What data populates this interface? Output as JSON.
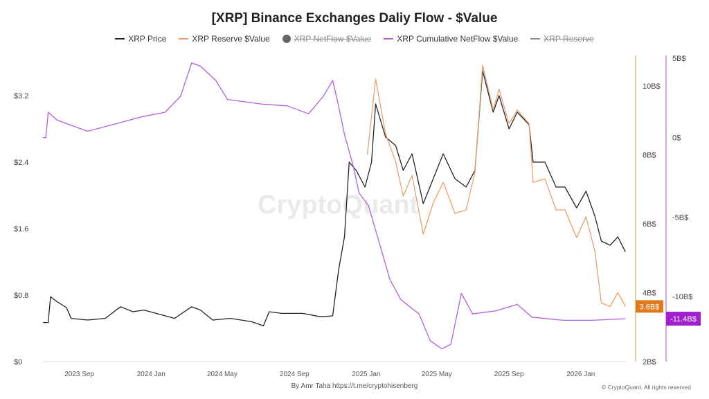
{
  "chart_data": {
    "type": "line",
    "title": "[XRP] Binance Exchanges Daliy Flow - $Value",
    "legend": [
      {
        "name": "XRP Price",
        "color": "#222222",
        "visible": true
      },
      {
        "name": "XRP Reserve $Value",
        "color": "#e8a06a",
        "visible": true
      },
      {
        "name": "XRP NetFlow $Value",
        "color": "#666666",
        "visible": false
      },
      {
        "name": "XRP Cumulative NetFlow $Value",
        "color": "#b25fe0",
        "visible": true
      },
      {
        "name": "XRP Reserve",
        "color": "#888888",
        "visible": false
      }
    ],
    "legend_position": "top",
    "x_ticks": [
      "2023 Sep",
      "2024 Jan",
      "2024 May",
      "2024 Sep",
      "2025 Jan",
      "2025 May",
      "2025 Sep",
      "2026 Jan"
    ],
    "x_tick_dates": [
      "2023-09-01",
      "2024-01-01",
      "2024-05-01",
      "2024-09-01",
      "2025-01-01",
      "2025-05-01",
      "2025-09-01",
      "2026-01-01"
    ],
    "xlim": [
      "2023-07-01",
      "2026-03-20"
    ],
    "y_left": {
      "ticks": [
        "$0",
        "$0.8",
        "$1.6",
        "$2.4",
        "$3.2"
      ],
      "tick_values": [
        0,
        0.8,
        1.6,
        2.4,
        3.2
      ],
      "range": [
        0,
        3.65
      ]
    },
    "y_right1": {
      "ticks": [
        "2B$",
        "4B$",
        "6B$",
        "8B$",
        "10B$"
      ],
      "tick_values": [
        2,
        4,
        6,
        8,
        10
      ],
      "range": [
        2,
        10.8
      ],
      "last_label": "3.6B$",
      "color": "#e07b1a"
    },
    "y_right2": {
      "ticks": [
        "-10B$",
        "-5B$",
        "0$",
        "5B$"
      ],
      "tick_values": [
        -10,
        -5,
        0,
        5
      ],
      "range": [
        -14.1,
        5
      ],
      "last_label": "-11.4B$",
      "color": "#a020d0"
    },
    "series": [
      {
        "name": "XRP Price",
        "axis": "left",
        "color": "#222222",
        "points": [
          [
            "2023-07-01",
            0.47
          ],
          [
            "2023-07-10",
            0.47
          ],
          [
            "2023-07-14",
            0.78
          ],
          [
            "2023-07-25",
            0.72
          ],
          [
            "2023-08-10",
            0.65
          ],
          [
            "2023-08-18",
            0.52
          ],
          [
            "2023-09-15",
            0.5
          ],
          [
            "2023-10-15",
            0.52
          ],
          [
            "2023-11-10",
            0.66
          ],
          [
            "2023-12-01",
            0.6
          ],
          [
            "2023-12-20",
            0.62
          ],
          [
            "2024-01-15",
            0.57
          ],
          [
            "2024-02-10",
            0.52
          ],
          [
            "2024-03-10",
            0.66
          ],
          [
            "2024-03-25",
            0.62
          ],
          [
            "2024-04-15",
            0.5
          ],
          [
            "2024-05-15",
            0.52
          ],
          [
            "2024-06-20",
            0.48
          ],
          [
            "2024-07-10",
            0.43
          ],
          [
            "2024-07-20",
            0.6
          ],
          [
            "2024-08-10",
            0.58
          ],
          [
            "2024-09-15",
            0.58
          ],
          [
            "2024-10-15",
            0.54
          ],
          [
            "2024-11-05",
            0.55
          ],
          [
            "2024-11-15",
            1.1
          ],
          [
            "2024-11-25",
            1.5
          ],
          [
            "2024-12-03",
            2.4
          ],
          [
            "2024-12-15",
            2.3
          ],
          [
            "2024-12-30",
            2.1
          ],
          [
            "2025-01-10",
            2.4
          ],
          [
            "2025-01-17",
            3.1
          ],
          [
            "2025-02-03",
            2.7
          ],
          [
            "2025-02-20",
            2.6
          ],
          [
            "2025-03-05",
            2.3
          ],
          [
            "2025-03-20",
            2.5
          ],
          [
            "2025-04-08",
            1.9
          ],
          [
            "2025-04-25",
            2.2
          ],
          [
            "2025-05-12",
            2.5
          ],
          [
            "2025-06-01",
            2.2
          ],
          [
            "2025-06-20",
            2.1
          ],
          [
            "2025-07-05",
            2.3
          ],
          [
            "2025-07-18",
            3.5
          ],
          [
            "2025-08-05",
            3.0
          ],
          [
            "2025-08-15",
            3.2
          ],
          [
            "2025-09-01",
            2.8
          ],
          [
            "2025-09-15",
            3.0
          ],
          [
            "2025-10-05",
            2.85
          ],
          [
            "2025-10-12",
            2.4
          ],
          [
            "2025-11-01",
            2.4
          ],
          [
            "2025-11-20",
            2.1
          ],
          [
            "2025-12-05",
            2.1
          ],
          [
            "2025-12-25",
            1.85
          ],
          [
            "2026-01-10",
            2.05
          ],
          [
            "2026-01-25",
            1.75
          ],
          [
            "2026-02-05",
            1.45
          ],
          [
            "2026-02-20",
            1.4
          ],
          [
            "2026-03-05",
            1.5
          ],
          [
            "2026-03-18",
            1.32
          ]
        ]
      },
      {
        "name": "XRP Reserve $Value",
        "axis": "right1",
        "color": "#e8a06a",
        "points": [
          [
            "2025-01-03",
            8.0
          ],
          [
            "2025-01-17",
            10.2
          ],
          [
            "2025-02-03",
            8.6
          ],
          [
            "2025-02-20",
            7.8
          ],
          [
            "2025-03-05",
            6.8
          ],
          [
            "2025-03-20",
            7.4
          ],
          [
            "2025-04-08",
            5.7
          ],
          [
            "2025-04-25",
            6.6
          ],
          [
            "2025-05-12",
            7.2
          ],
          [
            "2025-06-01",
            6.3
          ],
          [
            "2025-06-20",
            6.4
          ],
          [
            "2025-07-05",
            7.5
          ],
          [
            "2025-07-18",
            10.6
          ],
          [
            "2025-08-05",
            9.3
          ],
          [
            "2025-08-15",
            9.9
          ],
          [
            "2025-09-01",
            8.9
          ],
          [
            "2025-09-15",
            9.3
          ],
          [
            "2025-10-05",
            8.9
          ],
          [
            "2025-10-12",
            7.2
          ],
          [
            "2025-11-01",
            7.3
          ],
          [
            "2025-11-20",
            6.4
          ],
          [
            "2025-12-05",
            6.4
          ],
          [
            "2025-12-25",
            5.6
          ],
          [
            "2026-01-10",
            6.2
          ],
          [
            "2026-01-25",
            5.2
          ],
          [
            "2026-02-05",
            3.7
          ],
          [
            "2026-02-20",
            3.6
          ],
          [
            "2026-03-05",
            4.0
          ],
          [
            "2026-03-18",
            3.6
          ]
        ]
      },
      {
        "name": "XRP Cumulative NetFlow $Value",
        "axis": "right2",
        "color": "#b25fe0",
        "points": [
          [
            "2023-07-01",
            0.0
          ],
          [
            "2023-07-06",
            0.0
          ],
          [
            "2023-07-10",
            1.6
          ],
          [
            "2023-07-25",
            1.1
          ],
          [
            "2023-09-15",
            0.4
          ],
          [
            "2023-11-15",
            1.0
          ],
          [
            "2023-12-15",
            1.3
          ],
          [
            "2024-01-25",
            1.6
          ],
          [
            "2024-02-20",
            2.6
          ],
          [
            "2024-03-10",
            4.7
          ],
          [
            "2024-03-25",
            4.5
          ],
          [
            "2024-04-20",
            3.6
          ],
          [
            "2024-05-10",
            2.4
          ],
          [
            "2024-07-10",
            2.1
          ],
          [
            "2024-08-20",
            2.0
          ],
          [
            "2024-09-25",
            1.5
          ],
          [
            "2024-10-20",
            2.6
          ],
          [
            "2024-11-05",
            3.6
          ],
          [
            "2024-11-15",
            2.0
          ],
          [
            "2024-11-25",
            0.2
          ],
          [
            "2024-12-10",
            -1.8
          ],
          [
            "2024-12-20",
            -3.5
          ],
          [
            "2025-01-05",
            -4.3
          ],
          [
            "2025-01-20",
            -6.2
          ],
          [
            "2025-02-10",
            -8.9
          ],
          [
            "2025-03-01",
            -10.2
          ],
          [
            "2025-04-01",
            -11.1
          ],
          [
            "2025-04-20",
            -12.8
          ],
          [
            "2025-05-10",
            -13.3
          ],
          [
            "2025-05-25",
            -13.0
          ],
          [
            "2025-06-12",
            -9.8
          ],
          [
            "2025-07-01",
            -11.1
          ],
          [
            "2025-08-10",
            -10.9
          ],
          [
            "2025-09-15",
            -10.5
          ],
          [
            "2025-10-10",
            -11.3
          ],
          [
            "2025-12-01",
            -11.5
          ],
          [
            "2026-01-20",
            -11.5
          ],
          [
            "2026-03-18",
            -11.4
          ]
        ]
      }
    ]
  },
  "watermark": "CryptoQuant",
  "footer": {
    "author": "By Amr Taha",
    "link": "https://t.me/cryptohisenberg",
    "copyright": "© CryptoQuant. All rights reserved"
  }
}
